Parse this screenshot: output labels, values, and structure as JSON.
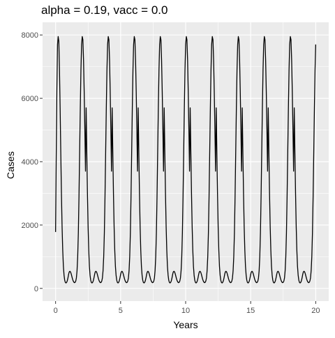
{
  "chart_data": {
    "type": "line",
    "title": "alpha = 0.19, vacc = 0.0",
    "xlabel": "Years",
    "ylabel": "Cases",
    "xlim": [
      -1,
      21
    ],
    "ylim": [
      -400,
      8400
    ],
    "xticks": [
      0,
      5,
      10,
      15,
      20
    ],
    "yticks": [
      0,
      2000,
      4000,
      6000,
      8000
    ],
    "grid": true,
    "background": "#EBEBEB",
    "grid_color": "#FFFFFF",
    "line_color": "#000000",
    "series": [
      {
        "values_x": [
          0,
          0.05,
          0.1,
          0.15,
          0.2,
          0.25,
          0.3,
          0.35,
          0.4,
          0.45,
          0.5,
          0.55,
          0.6,
          0.65,
          0.7,
          0.75,
          0.8,
          0.85,
          0.9,
          0.95,
          1.0,
          1.05,
          1.1,
          1.15,
          1.2,
          1.25,
          1.3,
          1.35,
          1.4,
          1.45,
          1.5,
          1.55,
          1.6,
          1.65,
          1.7,
          1.75,
          1.8,
          1.85,
          1.9,
          1.95,
          2.0,
          2.05,
          2.1,
          2.15,
          2.2,
          2.25,
          2.3
        ],
        "values_y": [
          1780,
          4200,
          6300,
          7700,
          7950,
          7800,
          6900,
          5700,
          4300,
          3000,
          1950,
          1200,
          700,
          420,
          260,
          190,
          170,
          190,
          240,
          330,
          440,
          520,
          540,
          520,
          460,
          380,
          300,
          240,
          200,
          180,
          190,
          230,
          330,
          560,
          1000,
          1750,
          2900,
          4300,
          5700,
          6900,
          7700,
          7950,
          7850,
          7200,
          6200,
          5000,
          3700
        ]
      }
    ]
  }
}
